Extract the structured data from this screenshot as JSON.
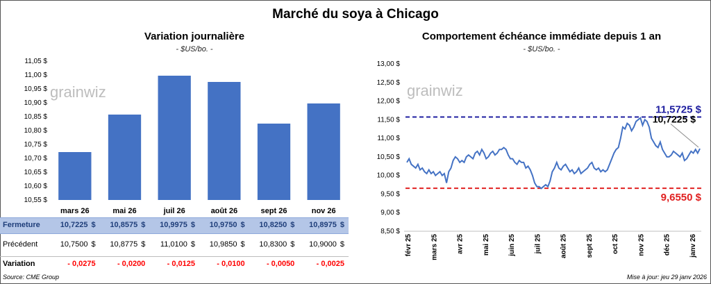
{
  "main_title": "Marché du soya à Chicago",
  "footer": {
    "source": "Source: CME Group",
    "updated": "Mise à jour: jeu 29 janv 2026"
  },
  "watermark": "grainwiz",
  "colors": {
    "bar": "#4472C4",
    "line": "#4472C4",
    "max_line": "#1F1FA0",
    "min_line": "#E02020",
    "table_highlight": "#B4C6E7",
    "negative": "#FF0000"
  },
  "chart_data": [
    {
      "type": "bar",
      "title": "Variation journalière",
      "subtitle": "- $US/bo. -",
      "categories": [
        "mars 26",
        "mai 26",
        "juil 26",
        "août 26",
        "sept 26",
        "nov 26"
      ],
      "values": [
        10.7225,
        10.8575,
        10.9975,
        10.975,
        10.825,
        10.8975
      ],
      "ylim": [
        10.55,
        11.05
      ],
      "yticks": [
        "10,55 $",
        "10,60 $",
        "10,65 $",
        "10,70 $",
        "10,75 $",
        "10,80 $",
        "10,85 $",
        "10,90 $",
        "10,95 $",
        "11,00 $",
        "11,05 $"
      ],
      "grid": false
    },
    {
      "type": "line",
      "title": "Comportement échéance immédiate depuis 1 an",
      "subtitle": "- $US/bo. -",
      "ylim": [
        8.5,
        13.0
      ],
      "yticks": [
        "8,50 $",
        "9,00 $",
        "9,50 $",
        "10,00 $",
        "10,50 $",
        "11,00 $",
        "11,50 $",
        "12,00 $",
        "12,50 $",
        "13,00 $"
      ],
      "xticks": [
        "févr 25",
        "mars 25",
        "avr 25",
        "mai 25",
        "juin 25",
        "juil 25",
        "août 25",
        "sept 25",
        "oct 25",
        "nov 25",
        "déc 25",
        "janv 26"
      ],
      "values": [
        10.35,
        10.45,
        10.3,
        10.25,
        10.2,
        10.3,
        10.15,
        10.2,
        10.1,
        10.05,
        10.15,
        10.05,
        10.1,
        10.0,
        10.05,
        10.1,
        10.0,
        10.05,
        9.8,
        10.1,
        10.2,
        10.4,
        10.5,
        10.45,
        10.35,
        10.4,
        10.35,
        10.5,
        10.55,
        10.5,
        10.45,
        10.6,
        10.65,
        10.55,
        10.7,
        10.6,
        10.45,
        10.5,
        10.6,
        10.65,
        10.55,
        10.6,
        10.7,
        10.7,
        10.75,
        10.7,
        10.55,
        10.45,
        10.45,
        10.35,
        10.3,
        10.4,
        10.35,
        10.35,
        10.2,
        10.25,
        10.15,
        10.0,
        9.8,
        9.7,
        9.7,
        9.65,
        9.7,
        9.75,
        9.7,
        9.85,
        10.1,
        10.2,
        10.35,
        10.2,
        10.15,
        10.25,
        10.3,
        10.2,
        10.1,
        10.15,
        10.05,
        10.1,
        10.2,
        10.05,
        10.1,
        10.15,
        10.2,
        10.3,
        10.35,
        10.2,
        10.15,
        10.2,
        10.1,
        10.15,
        10.1,
        10.15,
        10.3,
        10.45,
        10.6,
        10.7,
        10.75,
        11.0,
        11.3,
        11.25,
        11.4,
        11.35,
        11.2,
        11.3,
        11.45,
        11.5,
        11.55,
        11.35,
        11.5,
        11.45,
        11.3,
        11.0,
        10.9,
        10.8,
        10.75,
        10.9,
        10.7,
        10.6,
        10.5,
        10.5,
        10.55,
        10.65,
        10.6,
        10.55,
        10.5,
        10.6,
        10.4,
        10.45,
        10.55,
        10.65,
        10.6,
        10.7,
        10.6,
        10.72
      ],
      "max_value": 11.5725,
      "max_label": "11,5725 $",
      "min_value": 9.655,
      "min_label": "9,6550 $",
      "last_label": "10,7225 $",
      "grid": false
    }
  ],
  "table": {
    "rows": [
      {
        "label": "Fermeture",
        "values": [
          "10,7225",
          "10,8575",
          "10,9975",
          "10,9750",
          "10,8250",
          "10,8975"
        ],
        "unit": "$",
        "highlight": true
      },
      {
        "label": "Précédent",
        "values": [
          "10,7500",
          "10,8775",
          "11,0100",
          "10,9850",
          "10,8300",
          "10,9000"
        ],
        "unit": "$",
        "highlight": false
      },
      {
        "label": "Variation",
        "values": [
          "- 0,0275",
          "- 0,0200",
          "- 0,0125",
          "- 0,0100",
          "- 0,0050",
          "- 0,0025"
        ],
        "unit": "",
        "highlight": false,
        "negative": true
      }
    ]
  }
}
